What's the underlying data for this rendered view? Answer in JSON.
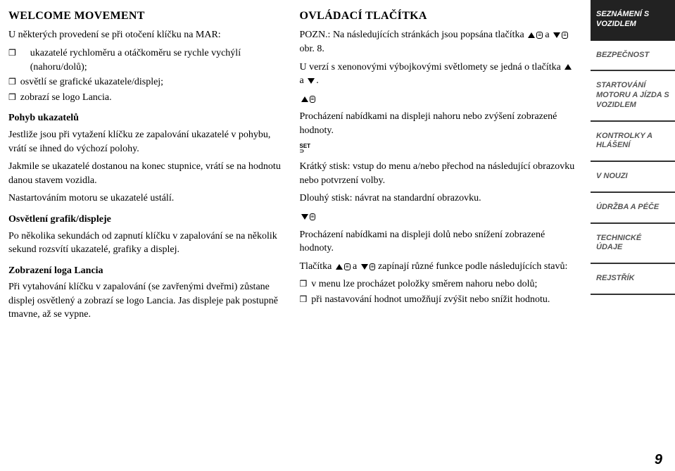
{
  "left": {
    "h1": "WELCOME MOVEMENT",
    "intro": "U některých provedení se při otočení klíčku na MAR:",
    "bullets": [
      "ukazatelé rychloměru a otáčkoměru se rychle vychýlí (nahoru/dolů);",
      "osvětlí se grafické ukazatele/displej;",
      "zobrazí se logo Lancia."
    ],
    "h2a": "Pohyb ukazatelů",
    "p1": "Jestliže jsou při vytažení klíčku ze zapalování ukazatelé v pohybu, vrátí se ihned do výchozí polohy.",
    "p2": "Jakmile se ukazatelé dostanou na konec stupnice, vrátí se na hodnotu danou stavem vozidla.",
    "p3": "Nastartováním motoru se ukazatelé ustálí.",
    "h2b": "Osvětlení grafik/displeje",
    "p4": "Po několika sekundách od zapnutí klíčku v zapalování se na několik sekund rozsvítí ukazatelé, grafiky a displej.",
    "h2c": "Zobrazení loga Lancia",
    "p5": "Při vytahování klíčku v zapalování (se zavřenými dveřmi) zůstane displej osvětlený a zobrazí se logo Lancia. Jas displeje pak postupně tmavne, až se vypne."
  },
  "right": {
    "h1": "OVLÁDACÍ TLAČÍTKA",
    "p1a": "POZN.: Na následujících stránkách jsou popsána tlačítka ",
    "p1b": " a ",
    "p1c": " obr. 8.",
    "p2a": "U verzí s xenonovými výbojkovými světlomety se jedná o tlačítka ",
    "p2b": " a ",
    "p2c": ".",
    "p3": "Procházení nabídkami na displeji nahoru nebo zvýšení zobrazené hodnoty.",
    "p4": "Krátký stisk: vstup do menu a/nebo přechod na následující obrazovku nebo potvrzení volby.",
    "p5": "Dlouhý stisk: návrat na standardní obrazovku.",
    "p6": "Procházení nabídkami na displeji dolů nebo snížení zobrazené hodnoty.",
    "p7a": "Tlačítka ",
    "p7b": " a ",
    "p7c": " zapínají různé funkce podle následujících stavů:",
    "bullets": [
      "v menu lze procházet položky směrem nahoru nebo dolů;",
      "při nastavování hodnot umožňují zvýšit nebo snížit hodnotu."
    ]
  },
  "sidebar": [
    "SEZNÁMENÍ S VOZIDLEM",
    "BEZPEČNOST",
    "STARTOVÁNÍ MOTORU A JÍZDA S VOZIDLEM",
    "KONTROLKY A HLÁŠENÍ",
    "V NOUZI",
    "ÚDRŽBA A PÉČE",
    "TECHNICKÉ ÚDAJE",
    "REJSTŘÍK"
  ],
  "pageNum": "9"
}
